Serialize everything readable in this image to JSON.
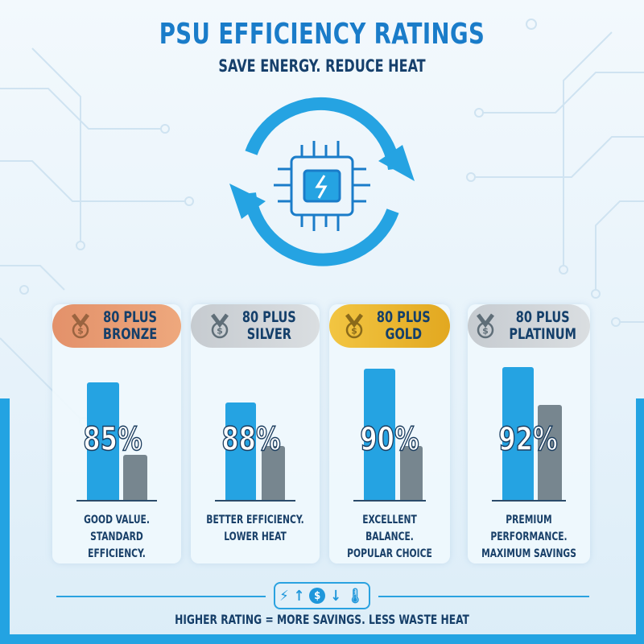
{
  "header": {
    "title": "PSU EFFICIENCY RATINGS",
    "subtitle": "SAVE ENERGY. REDUCE HEAT"
  },
  "hero_icon": "chip-power-plug-with-cycle-arrows-icon",
  "colors": {
    "accent": "#1a7cc9",
    "bar_blue": "#25a3e2",
    "bar_gray": "#77868f",
    "bronze": "#e89a6e",
    "silver": "#cfd4d8",
    "gold": "#f0c340",
    "platinum": "#cfd4d8",
    "navy": "#163f69"
  },
  "ratings": [
    {
      "line1": "80 PLUS",
      "line2": "BRONZE",
      "efficiency": "85%",
      "desc1": "GOOD VALUE.",
      "desc2": "STANDARD EFFICIENCY.",
      "medal": "bronze-medal-icon"
    },
    {
      "line1": "80 PLUS",
      "line2": "SILVER",
      "efficiency": "88%",
      "desc1": "BETTER EFFICIENCY.",
      "desc2": "LOWER HEAT",
      "medal": "silver-medal-icon"
    },
    {
      "line1": "80 PLUS",
      "line2": "GOLD",
      "efficiency": "90%",
      "desc1": "EXCELLENT BALANCE.",
      "desc2": "POPULAR CHOICE",
      "medal": "gold-medal-icon"
    },
    {
      "line1": "80 PLUS",
      "line2": "PLATINUM",
      "efficiency": "92%",
      "desc1": "PREMIUM PERFORMANCE.",
      "desc2": "MAXIMUM SAVINGS",
      "medal": "platinum-medal-icon"
    }
  ],
  "footer": {
    "icons": [
      "lightning-icon",
      "arrow-up-icon",
      "dollar-icon",
      "arrow-down-icon",
      "thermometer-icon"
    ],
    "text": "HIGHER RATING = MORE SAVINGS. LESS WASTE HEAT"
  }
}
